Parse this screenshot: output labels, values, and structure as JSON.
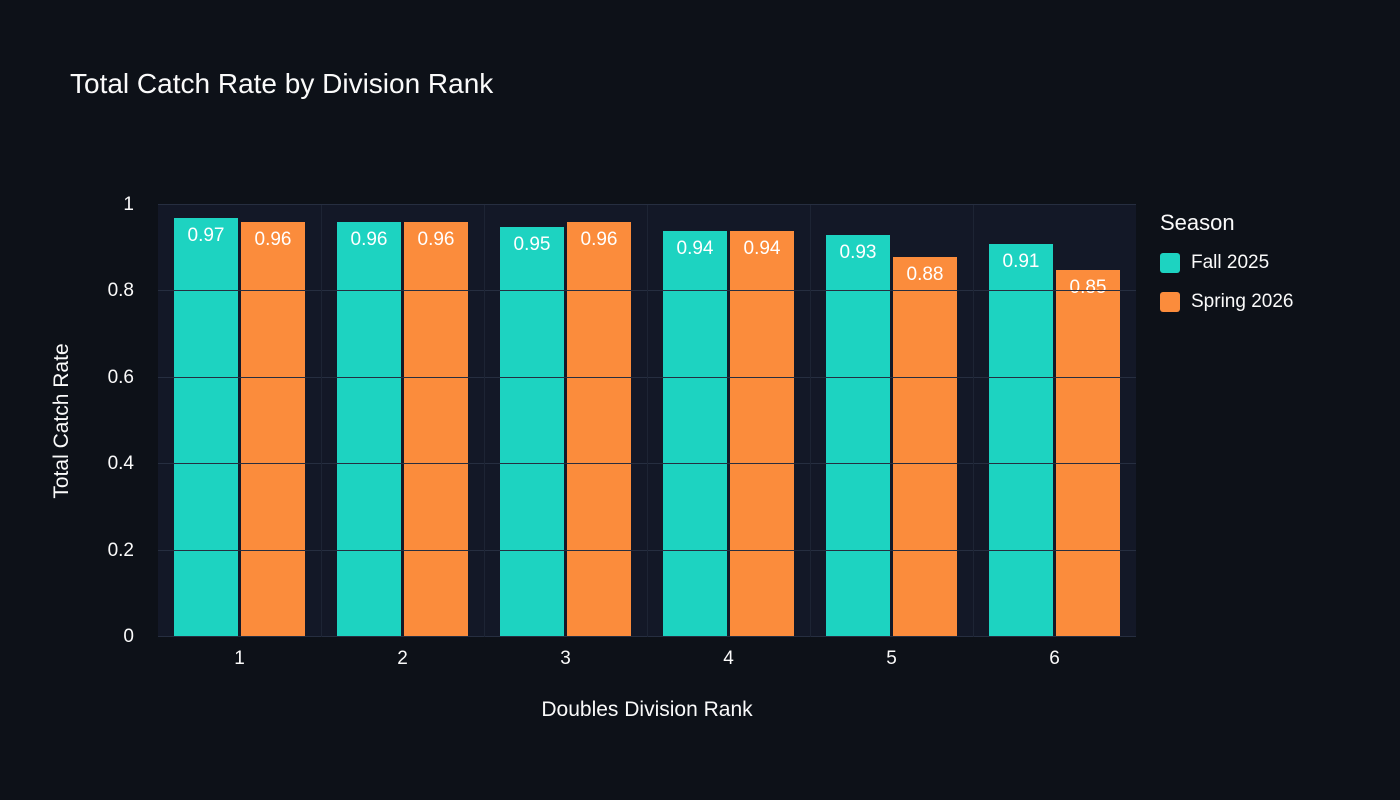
{
  "title": "Total Catch Rate by Division Rank",
  "chart_data": {
    "type": "bar",
    "title": "Total Catch Rate by Division Rank",
    "categories": [
      "1",
      "2",
      "3",
      "4",
      "5",
      "6"
    ],
    "series": [
      {
        "name": "Fall 2025",
        "color": "#1dd3c1",
        "values": [
          0.97,
          0.96,
          0.95,
          0.94,
          0.93,
          0.91
        ]
      },
      {
        "name": "Spring 2026",
        "color": "#fb8c3c",
        "values": [
          0.96,
          0.96,
          0.96,
          0.94,
          0.88,
          0.85
        ]
      }
    ],
    "xlabel": "Doubles Division Rank",
    "ylabel": "Total Catch Rate",
    "ylim": [
      0,
      1
    ],
    "yticks": [
      0,
      0.2,
      0.4,
      0.6,
      0.8,
      1
    ],
    "legend_title": "Season",
    "legend_position": "right",
    "grid": true,
    "bar_label_color": "#ffffff",
    "background": "#0d1118",
    "plot_background": "#131827",
    "text_color": "#fafafa"
  }
}
